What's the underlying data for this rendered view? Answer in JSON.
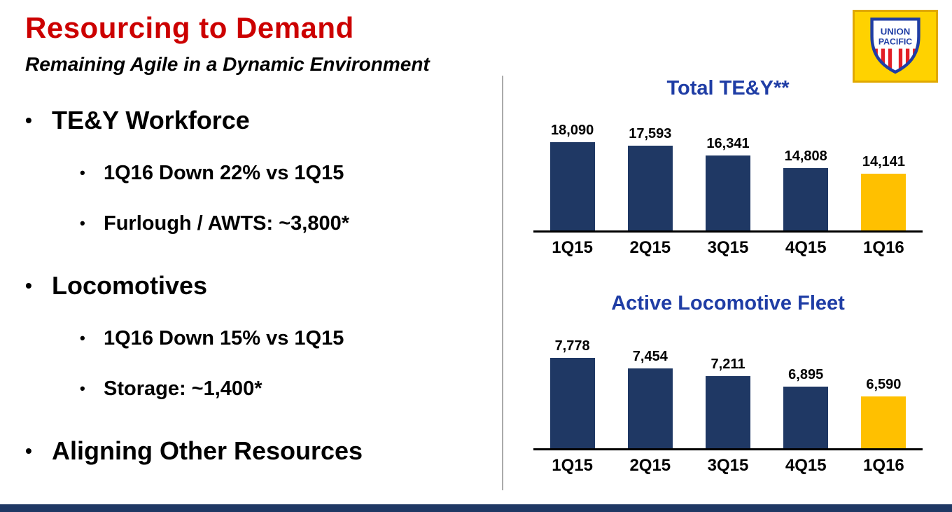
{
  "slide": {
    "title": "Resourcing to Demand",
    "subtitle": "Remaining Agile in a Dynamic Environment"
  },
  "glyphs": {
    "bullet": "•"
  },
  "logo": {
    "line1": "UNION",
    "line2": "PACIFIC"
  },
  "bullets": [
    {
      "label": "TE&Y Workforce",
      "sub": [
        "1Q16 Down 22% vs 1Q15",
        "Furlough / AWTS: ~3,800*"
      ]
    },
    {
      "label": "Locomotives",
      "sub": [
        "1Q16 Down 15% vs 1Q15",
        "Storage: ~1,400*"
      ]
    },
    {
      "label": "Aligning Other Resources",
      "sub": []
    }
  ],
  "colors": {
    "accent_red": "#CC0000",
    "title_blue": "#1F3DA5",
    "bar_blue": "#1F3864",
    "bar_gold": "#FFC000",
    "footer_blue": "#1F3864",
    "logo_yellow": "#FFD200",
    "logo_red": "#E21F26"
  },
  "chart_data": [
    {
      "type": "bar",
      "title": "Total TE&Y**",
      "categories": [
        "1Q15",
        "2Q15",
        "3Q15",
        "4Q15",
        "1Q16"
      ],
      "values": [
        18090,
        17593,
        16341,
        14808,
        14141
      ],
      "value_labels": [
        "18,090",
        "17,593",
        "16,341",
        "14,808",
        "14,141"
      ],
      "highlight_index": 4,
      "ylim": [
        7000,
        18400
      ],
      "axis_truncated": true,
      "grid": false,
      "legend": "none",
      "xlabel": "",
      "ylabel": ""
    },
    {
      "type": "bar",
      "title": "Active Locomotive Fleet",
      "categories": [
        "1Q15",
        "2Q15",
        "3Q15",
        "4Q15",
        "1Q16"
      ],
      "values": [
        7778,
        7454,
        7211,
        6895,
        6590
      ],
      "value_labels": [
        "7,778",
        "7,454",
        "7,211",
        "6,895",
        "6,590"
      ],
      "highlight_index": 4,
      "ylim": [
        5000,
        7800
      ],
      "axis_truncated": true,
      "grid": false,
      "legend": "none",
      "xlabel": "",
      "ylabel": ""
    }
  ]
}
